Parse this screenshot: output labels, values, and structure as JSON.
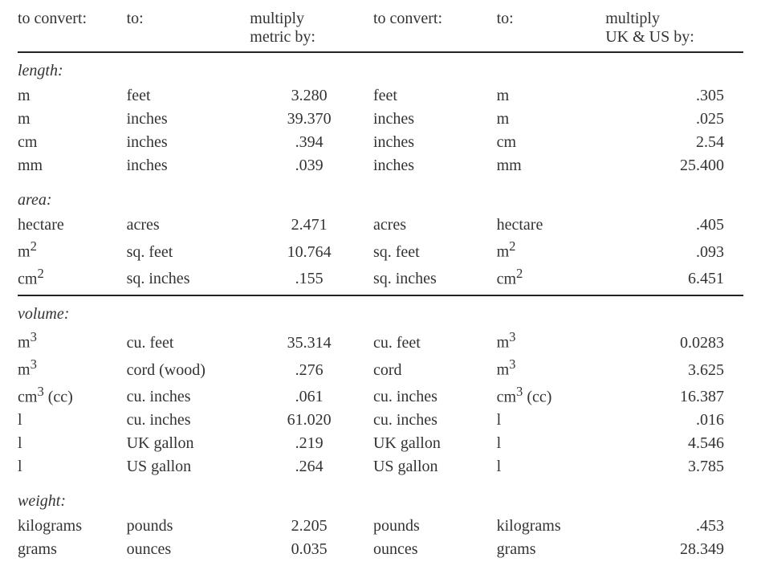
{
  "type": "table",
  "columns": [
    {
      "key": "m_from",
      "label": "to convert:"
    },
    {
      "key": "m_to",
      "label": "to:"
    },
    {
      "key": "m_factor",
      "label": "multiply\nmetric by:"
    },
    {
      "key": "i_from",
      "label": "to convert:"
    },
    {
      "key": "i_to",
      "label": "to:"
    },
    {
      "key": "i_factor",
      "label": "multiply\nUK & US by:"
    }
  ],
  "sections": [
    {
      "title": "length:",
      "rule_after": false,
      "rows": [
        {
          "m_from": "m",
          "m_to": "feet",
          "m_factor": "3.280",
          "i_from": "feet",
          "i_to": "m",
          "i_factor": ".305"
        },
        {
          "m_from": "m",
          "m_to": "inches",
          "m_factor": "39.370",
          "i_from": "inches",
          "i_to": "m",
          "i_factor": ".025"
        },
        {
          "m_from": "cm",
          "m_to": "inches",
          "m_factor": ".394",
          "i_from": "inches",
          "i_to": "cm",
          "i_factor": "2.54"
        },
        {
          "m_from": "mm",
          "m_to": "inches",
          "m_factor": ".039",
          "i_from": "inches",
          "i_to": "mm",
          "i_factor": "25.400"
        }
      ]
    },
    {
      "title": "area:",
      "rule_after": true,
      "rows": [
        {
          "m_from": "hectare",
          "m_to": "acres",
          "m_factor": "2.471",
          "i_from": "acres",
          "i_to": "hectare",
          "i_factor": ".405"
        },
        {
          "m_from": "m²",
          "m_to": "sq. feet",
          "m_factor": "10.764",
          "i_from": "sq. feet",
          "i_to": "m²",
          "i_factor": ".093"
        },
        {
          "m_from": "cm²",
          "m_to": "sq. inches",
          "m_factor": ".155",
          "i_from": "sq. inches",
          "i_to": "cm²",
          "i_factor": "6.451"
        }
      ]
    },
    {
      "title": "volume:",
      "rule_after": false,
      "rows": [
        {
          "m_from": "m³",
          "m_to": "cu. feet",
          "m_factor": "35.314",
          "i_from": "cu. feet",
          "i_to": "m³",
          "i_factor": "0.0283"
        },
        {
          "m_from": "m³",
          "m_to": "cord (wood)",
          "m_factor": ".276",
          "i_from": "cord",
          "i_to": "m³",
          "i_factor": "3.625"
        },
        {
          "m_from": "cm³ (cc)",
          "m_to": "cu. inches",
          "m_factor": ".061",
          "i_from": "cu. inches",
          "i_to": "cm³ (cc)",
          "i_factor": "16.387"
        },
        {
          "m_from": "l",
          "m_to": "cu. inches",
          "m_factor": "61.020",
          "i_from": "cu. inches",
          "i_to": "l",
          "i_factor": ".016"
        },
        {
          "m_from": "l",
          "m_to": "UK gallon",
          "m_factor": ".219",
          "i_from": "UK gallon",
          "i_to": "l",
          "i_factor": "4.546"
        },
        {
          "m_from": "l",
          "m_to": "US gallon",
          "m_factor": ".264",
          "i_from": "US gallon",
          "i_to": "l",
          "i_factor": "3.785"
        }
      ]
    },
    {
      "title": "weight:",
      "rule_after": false,
      "rows": [
        {
          "m_from": "kilograms",
          "m_to": "pounds",
          "m_factor": "2.205",
          "i_from": "pounds",
          "i_to": "kilograms",
          "i_factor": ".453"
        },
        {
          "m_from": "grams",
          "m_to": "ounces",
          "m_factor": "0.035",
          "i_from": "ounces",
          "i_to": "grams",
          "i_factor": "28.349"
        }
      ]
    }
  ]
}
